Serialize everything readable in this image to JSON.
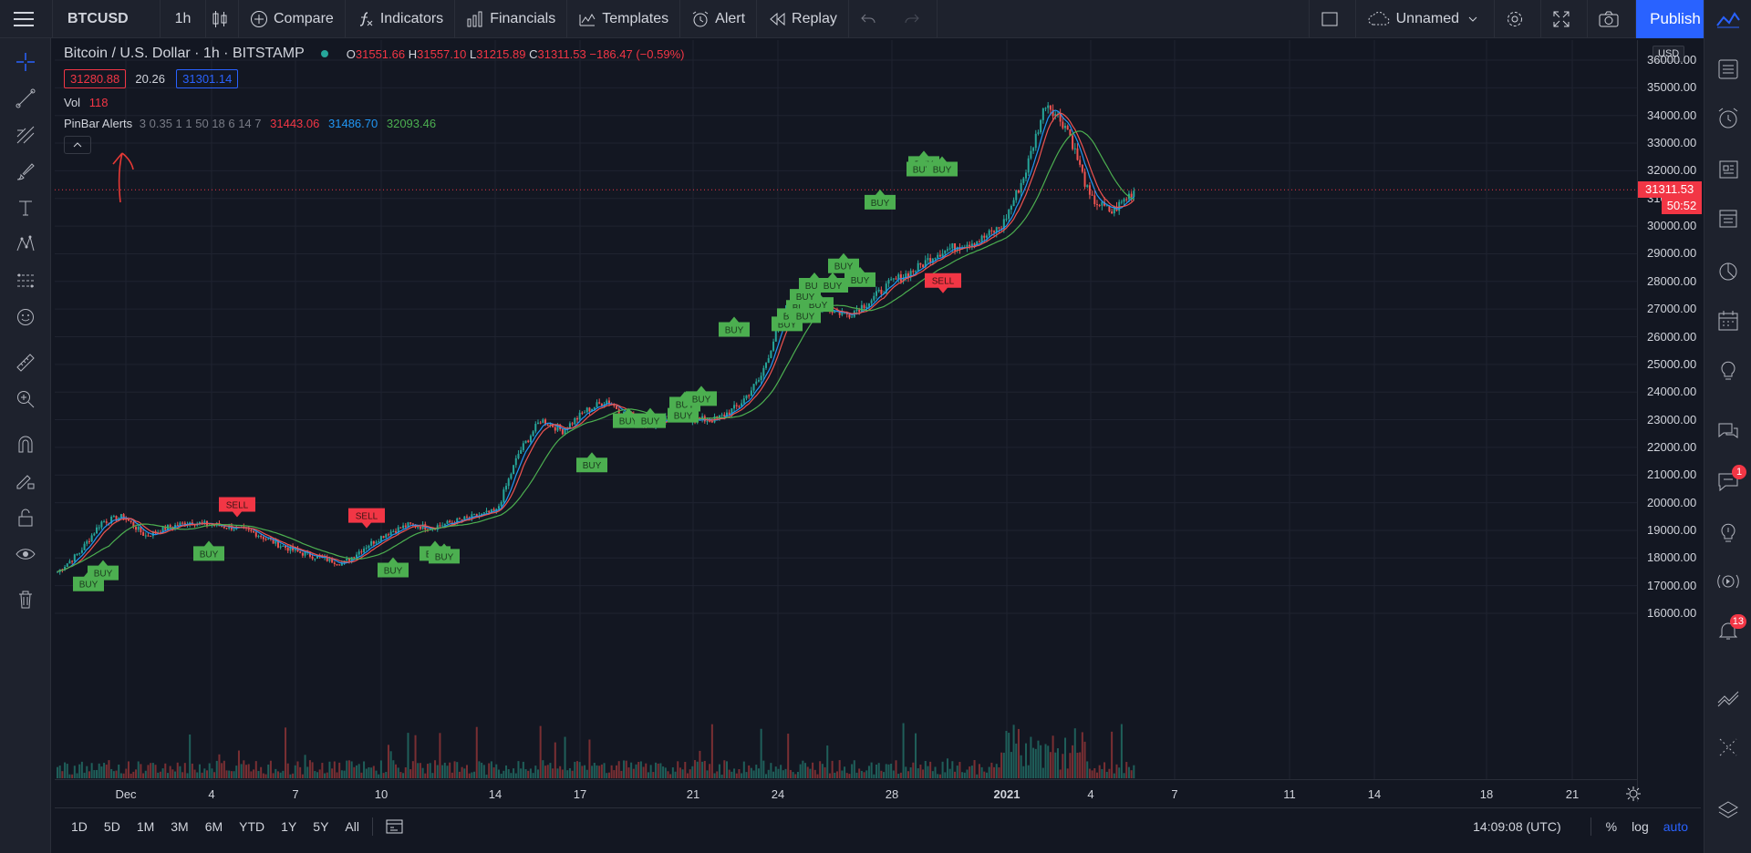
{
  "toolbar": {
    "symbol": "BTCUSD",
    "interval": "1h",
    "compare": "Compare",
    "indicators": "Indicators",
    "financials": "Financials",
    "templates": "Templates",
    "alert": "Alert",
    "replay": "Replay",
    "layout_name": "Unnamed",
    "publish": "Publish"
  },
  "legend": {
    "title": "Bitcoin / U.S. Dollar · 1h · BITSTAMP",
    "o_label": "O",
    "o_value": "31551.66",
    "h_label": "H",
    "h_value": "31557.10",
    "l_label": "L",
    "l_value": "31215.89",
    "c_label": "C",
    "c_value": "31311.53",
    "change": "−186.47 (−0.59%)",
    "bid": "31280.88",
    "spread": "20.26",
    "ask": "31301.14",
    "vol_label": "Vol",
    "vol_value": "118",
    "indicator_name": "PinBar Alerts",
    "indicator_params": "3 0.35 1 1 50 18 6 14 7",
    "ind_v1": "31443.06",
    "ind_v2": "31486.70",
    "ind_v3": "32093.46"
  },
  "price_axis": {
    "currency": "USD",
    "ticks": [
      "36000.00",
      "35000.00",
      "34000.00",
      "33000.00",
      "32000.00",
      "31000.00",
      "30000.00",
      "29000.00",
      "28000.00",
      "27000.00",
      "26000.00",
      "25000.00",
      "24000.00",
      "23000.00",
      "22000.00",
      "21000.00",
      "20000.00",
      "19000.00",
      "18000.00",
      "17000.00",
      "16000.00"
    ],
    "current_price": "31311.53",
    "countdown": "50:52"
  },
  "time_axis": {
    "ticks": [
      "Dec",
      "4",
      "7",
      "10",
      "14",
      "17",
      "21",
      "24",
      "28",
      "2021",
      "4",
      "7",
      "11",
      "14",
      "18",
      "21"
    ]
  },
  "bottom": {
    "ranges": [
      "1D",
      "5D",
      "1M",
      "3M",
      "6M",
      "YTD",
      "1Y",
      "5Y",
      "All"
    ],
    "clock": "14:09:08 (UTC)",
    "percent": "%",
    "log": "log",
    "auto": "auto"
  },
  "notifications": {
    "chat_badge": "1",
    "alerts_badge": "13"
  },
  "signals": {
    "buy_label": "BUY",
    "sell_label": "SELL",
    "buy": [
      16800,
      17200,
      17900,
      17300,
      17900,
      17800,
      21100,
      22700,
      22700,
      22900,
      23300,
      23500,
      26000,
      26200,
      26500,
      26800,
      26500,
      26900,
      27200,
      27600,
      27600,
      28300,
      27800,
      30600,
      32000,
      31800,
      31800
    ],
    "sell": [
      20200,
      19800,
      28300
    ]
  },
  "chart_data": {
    "type": "candlestick",
    "title": "Bitcoin / U.S. Dollar · 1h · BITSTAMP",
    "ylim": [
      15700,
      36300
    ],
    "x_ticks": [
      "Dec",
      "4",
      "7",
      "10",
      "14",
      "17",
      "21",
      "24",
      "28",
      "2021",
      "4",
      "7",
      "11",
      "14",
      "18",
      "21"
    ],
    "close_path": [
      17500,
      18200,
      19300,
      19500,
      18800,
      19100,
      19300,
      19200,
      19100,
      18900,
      18500,
      18200,
      18000,
      17800,
      18400,
      18900,
      19200,
      19100,
      19300,
      19500,
      19700,
      21800,
      23000,
      22600,
      23300,
      23700,
      23100,
      22800,
      23200,
      23000,
      23000,
      23500,
      24500,
      26800,
      27500,
      27000,
      26800,
      27300,
      28000,
      28400,
      29000,
      29300,
      29500,
      30000,
      31800,
      34500,
      33500,
      31000,
      30500,
      31300
    ]
  },
  "colors": {
    "up": "#26a69a",
    "down": "#ef5350",
    "buy": "#4caf50",
    "sell": "#f23645",
    "accent": "#2962ff"
  }
}
